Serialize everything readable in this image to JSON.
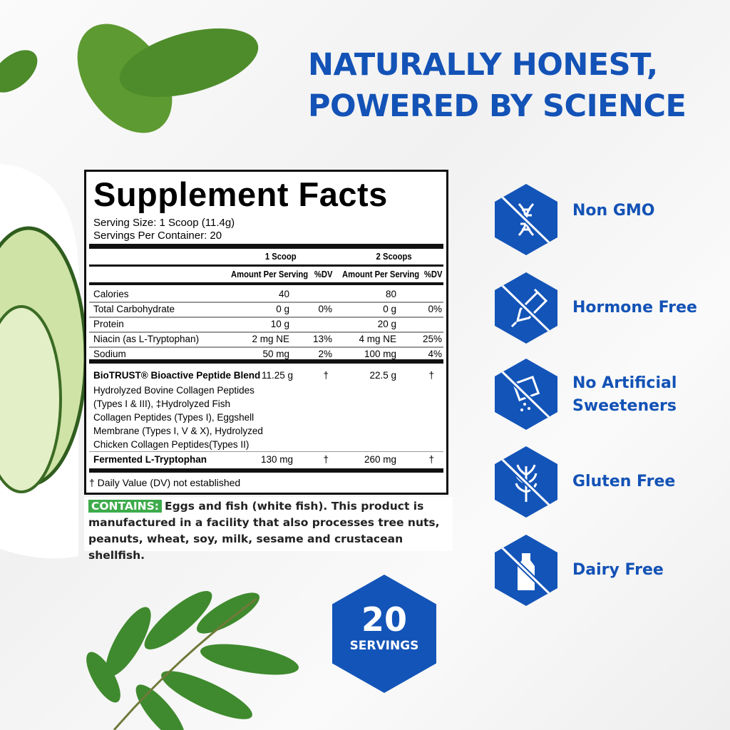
{
  "headline": [
    "NATURALLY HONEST,",
    "POWERED BY SCIENCE"
  ],
  "facts": {
    "title": "Supplement Facts",
    "serving_size": "Serving Size: 1 Scoop (11.4g)",
    "servings_per_container": "Servings Per Container: 20",
    "col_groups": [
      "1 Scoop",
      "2 Scoops"
    ],
    "col_headers": [
      "Amount Per Serving",
      "%DV",
      "Amount Per Serving",
      "%DV"
    ],
    "rows": [
      {
        "name": "Calories",
        "a1": "40",
        "d1": "",
        "a2": "80",
        "d2": ""
      },
      {
        "name": "Total Carbohydrate",
        "a1": "0 g",
        "d1": "0%",
        "a2": "0 g",
        "d2": "0%"
      },
      {
        "name": "Protein",
        "a1": "10 g",
        "d1": "",
        "a2": "20 g",
        "d2": ""
      },
      {
        "name": "Niacin (as L-Tryptophan)",
        "a1": "2 mg NE",
        "d1": "13%",
        "a2": "4 mg NE",
        "d2": "25%"
      },
      {
        "name": "Sodium",
        "a1": "50 mg",
        "d1": "2%",
        "a2": "100 mg",
        "d2": "4%"
      }
    ],
    "blend": {
      "name": "BioTRUST® Bioactive Peptide Blend",
      "a1": "11.25 g",
      "d1": "†",
      "a2": "22.5 g",
      "d2": "†",
      "ingredients": "Hydrolyzed Bovine Collagen Peptides (Types I & III), ‡Hydrolyzed Fish Collagen Peptides (Types I), Eggshell Membrane (Types I, V & X), Hydrolyzed Chicken Collagen Peptides(Types II)"
    },
    "tryptophan": {
      "name": "Fermented L-Tryptophan",
      "a1": "130 mg",
      "d1": "†",
      "a2": "260 mg",
      "d2": "†"
    },
    "footnote": "† Daily Value (DV) not established"
  },
  "contains": {
    "label": "CONTAINS:",
    "text": "Eggs and fish (white fish). This product is manufactured in a facility that also processes tree nuts, peanuts, wheat, soy, milk, sesame and crustacean shellfish."
  },
  "badges": [
    {
      "label": "Non GMO",
      "icon": "dna-crossed-icon"
    },
    {
      "label": "Hormone Free",
      "icon": "syringe-crossed-icon"
    },
    {
      "label": "No Artificial Sweeteners",
      "icon": "sweetener-crossed-icon"
    },
    {
      "label": "Gluten Free",
      "icon": "wheat-crossed-icon"
    },
    {
      "label": "Dairy Free",
      "icon": "milk-bottle-crossed-icon"
    }
  ],
  "servings_badge": {
    "number": "20",
    "label": "SERVINGS"
  },
  "colors": {
    "brand_blue": "#1354b8",
    "contains_green": "#3dab4a"
  }
}
